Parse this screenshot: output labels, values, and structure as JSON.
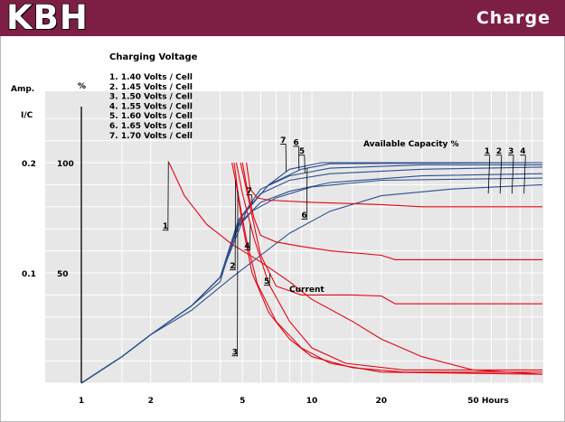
{
  "header": {
    "brand": "KBH",
    "section": "Charge"
  },
  "colors": {
    "header_bg": "#7d1f44",
    "plot_bg": "#e7e7e7",
    "grid": "#ffffff",
    "current": "#e30613",
    "capacity": "#2d4f8e"
  },
  "chart_data": {
    "type": "line",
    "title": "Charging Voltage",
    "x_scale": "log",
    "xlim": [
      1,
      100
    ],
    "x_ticks": [
      {
        "value": 1,
        "label": "1"
      },
      {
        "value": 2,
        "label": "2"
      },
      {
        "value": 5,
        "label": "5"
      },
      {
        "value": 10,
        "label": "10"
      },
      {
        "value": 20,
        "label": "20"
      },
      {
        "value": 50,
        "label": "50  Hours"
      }
    ],
    "left_axis": {
      "label": "Amp.",
      "sublabel": "I/C",
      "ticks": [
        {
          "value": 0.2,
          "label": "0.2"
        },
        {
          "value": 0.1,
          "label": "0.1"
        }
      ]
    },
    "right_axis": {
      "label": "%",
      "ticks": [
        {
          "value": 100,
          "label": "100"
        },
        {
          "value": 50,
          "label": "50"
        }
      ]
    },
    "grid": true,
    "legend": [
      "1. 1.40  Volts / Cell",
      "2. 1.45  Volts / Cell",
      "3. 1.50  Volts / Cell",
      "4. 1.55  Volts / Cell",
      "5. 1.60  Volts / Cell",
      "6. 1.65  Volts / Cell",
      "7. 1.70  Volts / Cell"
    ],
    "annotations": {
      "capacity": "Available Capacity %",
      "current": "Current"
    },
    "current_series": [
      {
        "name": "1",
        "points": [
          [
            2.4,
            100
          ],
          [
            2.8,
            85
          ],
          [
            3.5,
            72
          ],
          [
            4.5,
            63
          ],
          [
            6,
            55
          ],
          [
            8,
            46
          ],
          [
            10,
            38
          ],
          [
            15,
            28
          ],
          [
            20,
            20
          ],
          [
            30,
            12
          ],
          [
            50,
            6
          ],
          [
            100,
            4
          ]
        ]
      },
      {
        "name": "2",
        "points": [
          [
            4.5,
            100
          ],
          [
            4.7,
            90
          ],
          [
            5,
            72
          ],
          [
            5.5,
            50
          ],
          [
            6.5,
            32
          ],
          [
            8,
            20
          ],
          [
            10,
            12
          ],
          [
            15,
            7
          ],
          [
            25,
            5
          ],
          [
            100,
            5
          ]
        ]
      },
      {
        "name": "3",
        "points": [
          [
            4.6,
            100
          ],
          [
            4.8,
            85
          ],
          [
            5.2,
            65
          ],
          [
            5.8,
            45
          ],
          [
            7,
            28
          ],
          [
            9,
            16
          ],
          [
            12,
            9
          ],
          [
            20,
            5
          ],
          [
            100,
            4
          ]
        ]
      },
      {
        "name": "4",
        "points": [
          [
            4.7,
            100
          ],
          [
            5,
            86
          ],
          [
            5.6,
            66
          ],
          [
            6.5,
            45
          ],
          [
            8,
            28
          ],
          [
            10,
            16
          ],
          [
            14,
            9
          ],
          [
            25,
            6
          ],
          [
            100,
            6
          ]
        ]
      },
      {
        "name": "5",
        "points": [
          [
            4.9,
            100
          ],
          [
            5.1,
            92
          ],
          [
            5.5,
            76
          ],
          [
            6,
            58
          ],
          [
            7,
            44
          ],
          [
            9,
            40
          ],
          [
            15,
            40
          ],
          [
            20,
            39.5
          ],
          [
            23,
            36
          ],
          [
            100,
            36
          ]
        ]
      },
      {
        "name": "6",
        "points": [
          [
            5,
            100
          ],
          [
            5.2,
            90
          ],
          [
            5.6,
            75
          ],
          [
            6,
            67
          ],
          [
            7,
            64
          ],
          [
            9,
            62
          ],
          [
            12,
            60
          ],
          [
            20,
            58
          ],
          [
            23,
            56
          ],
          [
            100,
            56
          ]
        ]
      },
      {
        "name": "7",
        "points": [
          [
            5.2,
            100
          ],
          [
            5.4,
            88
          ],
          [
            5.8,
            84
          ],
          [
            6.5,
            83
          ],
          [
            10,
            82
          ],
          [
            20,
            81
          ],
          [
            30,
            80
          ],
          [
            100,
            80
          ]
        ]
      }
    ],
    "capacity_series": [
      {
        "name": "1",
        "points": [
          [
            1,
            0
          ],
          [
            1.5,
            12
          ],
          [
            2,
            22
          ],
          [
            3,
            33
          ],
          [
            4.5,
            48
          ],
          [
            6,
            58
          ],
          [
            8,
            68
          ],
          [
            12,
            78
          ],
          [
            20,
            85
          ],
          [
            40,
            88
          ],
          [
            100,
            90
          ]
        ]
      },
      {
        "name": "2",
        "points": [
          [
            1,
            0
          ],
          [
            1.5,
            12
          ],
          [
            2,
            22
          ],
          [
            3,
            35
          ],
          [
            4,
            46
          ],
          [
            4.7,
            70
          ],
          [
            5.5,
            78
          ],
          [
            7,
            84
          ],
          [
            10,
            89
          ],
          [
            20,
            92
          ],
          [
            100,
            93
          ]
        ]
      },
      {
        "name": "3",
        "points": [
          [
            1,
            0
          ],
          [
            1.5,
            12
          ],
          [
            2,
            22
          ],
          [
            3,
            35
          ],
          [
            4,
            48
          ],
          [
            4.8,
            72
          ],
          [
            6,
            82
          ],
          [
            8,
            87
          ],
          [
            12,
            91
          ],
          [
            30,
            94
          ],
          [
            100,
            95
          ]
        ]
      },
      {
        "name": "4",
        "points": [
          [
            1,
            0
          ],
          [
            1.5,
            12
          ],
          [
            2,
            22
          ],
          [
            3,
            35
          ],
          [
            4,
            48
          ],
          [
            4.8,
            74
          ],
          [
            6,
            86
          ],
          [
            8,
            92
          ],
          [
            12,
            95
          ],
          [
            30,
            97
          ],
          [
            100,
            98
          ]
        ]
      },
      {
        "name": "5",
        "points": [
          [
            1,
            0
          ],
          [
            1.5,
            12
          ],
          [
            2,
            22
          ],
          [
            3,
            35
          ],
          [
            4,
            48
          ],
          [
            4.9,
            75
          ],
          [
            6,
            88
          ],
          [
            8,
            94
          ],
          [
            12,
            97.5
          ],
          [
            30,
            99
          ],
          [
            100,
            99
          ]
        ]
      },
      {
        "name": "6",
        "points": [
          [
            1,
            0
          ],
          [
            1.5,
            12
          ],
          [
            2,
            22
          ],
          [
            3,
            35
          ],
          [
            4,
            48
          ],
          [
            5,
            76
          ],
          [
            6.5,
            90
          ],
          [
            9,
            97
          ],
          [
            12,
            99.5
          ],
          [
            100,
            100
          ]
        ]
      },
      {
        "name": "7",
        "points": [
          [
            1,
            0
          ],
          [
            1.5,
            12
          ],
          [
            2,
            22
          ],
          [
            3,
            35
          ],
          [
            4,
            48
          ],
          [
            5.2,
            78
          ],
          [
            6.5,
            90
          ],
          [
            8,
            97
          ],
          [
            11,
            100
          ],
          [
            100,
            100
          ]
        ]
      }
    ],
    "curve_labels": [
      {
        "text": "1",
        "kind": "current",
        "series": 0,
        "at": 2.25,
        "val": 70
      },
      {
        "text": "2",
        "kind": "current",
        "series": 1,
        "at": 4.4,
        "val": 52
      },
      {
        "text": "3",
        "kind": "current",
        "series": 2,
        "at": 4.5,
        "val": 13
      },
      {
        "text": "4",
        "kind": "current",
        "series": 3,
        "at": 5.1,
        "val": 61
      },
      {
        "text": "5",
        "kind": "current",
        "series": 4,
        "at": 6.2,
        "val": 45
      },
      {
        "text": "6",
        "kind": "capacity",
        "series": 5,
        "at": 9.0,
        "val": 75
      },
      {
        "text": "7",
        "kind": "capacity",
        "series": 6,
        "at": 5.2,
        "val": 86
      },
      {
        "text": "7",
        "kind": "capacity",
        "series": 6,
        "at": 7.3,
        "val": 109
      },
      {
        "text": "6",
        "kind": "capacity",
        "series": 5,
        "at": 8.3,
        "val": 108
      },
      {
        "text": "5",
        "kind": "capacity",
        "series": 4,
        "at": 8.8,
        "val": 104
      },
      {
        "text": "1",
        "kind": "capacity",
        "series": 0,
        "at": 56,
        "val": 104
      },
      {
        "text": "2",
        "kind": "capacity",
        "series": 1,
        "at": 63,
        "val": 104
      },
      {
        "text": "3",
        "kind": "capacity",
        "series": 2,
        "at": 71,
        "val": 104
      },
      {
        "text": "4",
        "kind": "capacity",
        "series": 3,
        "at": 80,
        "val": 104
      }
    ]
  }
}
